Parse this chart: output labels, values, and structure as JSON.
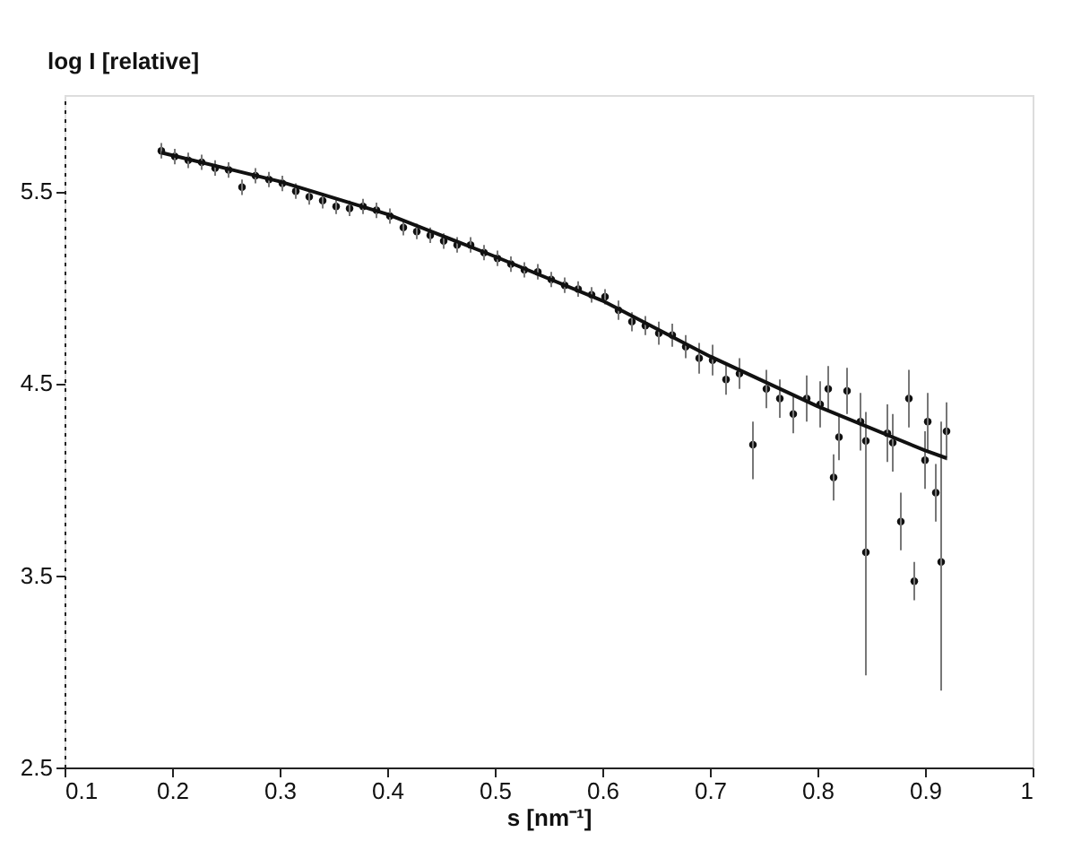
{
  "chart_data": {
    "type": "scatter",
    "xlabel": "s [nm⁻¹]",
    "ylabel": "log I [relative]",
    "xlim": [
      0.1,
      1
    ],
    "ylim": [
      2.5,
      6.0
    ],
    "xticks": [
      0.1,
      0.2,
      0.3,
      0.4,
      0.5,
      0.6,
      0.7,
      0.8,
      0.9,
      1
    ],
    "yticks": [
      2.5,
      3.5,
      4.5,
      5.5
    ],
    "grid": false,
    "series": [
      {
        "marker": "circle",
        "color": "#111111",
        "x": [
          0.19,
          0.2025,
          0.215,
          0.2275,
          0.24,
          0.2525,
          0.265,
          0.2775,
          0.29,
          0.3025,
          0.315,
          0.3275,
          0.34,
          0.3525,
          0.365,
          0.3775,
          0.39,
          0.4025,
          0.415,
          0.4275,
          0.44,
          0.4525,
          0.465,
          0.4775,
          0.49,
          0.5025,
          0.515,
          0.5275,
          0.54,
          0.5525,
          0.565,
          0.5775,
          0.59,
          0.6025,
          0.615,
          0.6275,
          0.64,
          0.6525,
          0.665,
          0.6775,
          0.69,
          0.7025,
          0.715,
          0.7275,
          0.74,
          0.7525,
          0.765,
          0.7775,
          0.79,
          0.8025,
          0.81,
          0.815,
          0.82,
          0.8275,
          0.84,
          0.845,
          0.845,
          0.865,
          0.87,
          0.8775,
          0.885,
          0.89,
          0.9,
          0.9025,
          0.91,
          0.915,
          0.92
        ],
        "values": [
          5.71,
          5.68,
          5.66,
          5.65,
          5.62,
          5.61,
          5.52,
          5.58,
          5.56,
          5.54,
          5.5,
          5.47,
          5.45,
          5.42,
          5.41,
          5.42,
          5.4,
          5.37,
          5.31,
          5.29,
          5.27,
          5.24,
          5.22,
          5.22,
          5.18,
          5.15,
          5.12,
          5.09,
          5.08,
          5.04,
          5.01,
          4.99,
          4.96,
          4.95,
          4.88,
          4.82,
          4.8,
          4.76,
          4.75,
          4.69,
          4.63,
          4.62,
          4.52,
          4.55,
          4.18,
          4.47,
          4.42,
          4.34,
          4.42,
          4.39,
          4.47,
          4.01,
          4.22,
          4.46,
          4.3,
          3.62,
          4.2,
          4.24,
          4.19,
          3.78,
          4.42,
          3.47,
          4.1,
          4.3,
          3.93,
          3.57,
          4.25
        ],
        "errors": [
          0.04,
          0.04,
          0.04,
          0.04,
          0.04,
          0.04,
          0.04,
          0.04,
          0.04,
          0.04,
          0.04,
          0.04,
          0.04,
          0.04,
          0.04,
          0.04,
          0.04,
          0.04,
          0.04,
          0.04,
          0.04,
          0.04,
          0.04,
          0.04,
          0.04,
          0.04,
          0.04,
          0.04,
          0.04,
          0.04,
          0.04,
          0.04,
          0.04,
          0.04,
          0.05,
          0.05,
          0.05,
          0.06,
          0.06,
          0.06,
          0.08,
          0.08,
          0.08,
          0.08,
          [
            4.0,
            4.3
          ],
          0.1,
          0.1,
          0.1,
          0.12,
          0.12,
          0.12,
          0.12,
          0.12,
          0.12,
          0.15,
          [
            2.98,
            4.2
          ],
          0.15,
          0.15,
          0.15,
          0.15,
          0.15,
          0.1,
          0.15,
          0.15,
          0.15,
          [
            2.9,
            4.3
          ],
          0.15
        ]
      },
      {
        "type": "line",
        "color": "#111111",
        "x": [
          0.19,
          0.3,
          0.4,
          0.5,
          0.6,
          0.7,
          0.8,
          0.9,
          0.92
        ],
        "values": [
          5.7,
          5.55,
          5.38,
          5.16,
          4.93,
          4.64,
          4.38,
          4.15,
          4.11
        ]
      }
    ]
  }
}
